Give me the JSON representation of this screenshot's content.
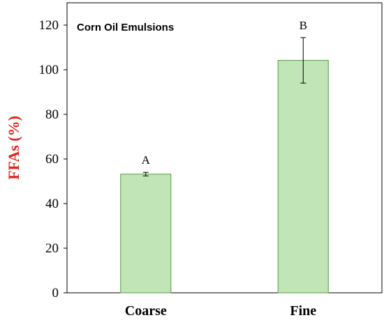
{
  "chart_data": {
    "type": "bar",
    "title": "Corn Oil Emulsions",
    "xlabel": "",
    "ylabel": "FFAs (%)",
    "ylim": [
      0,
      130
    ],
    "yticks": [
      0,
      20,
      40,
      60,
      80,
      100,
      120
    ],
    "categories": [
      "Coarse",
      "Fine"
    ],
    "values": [
      53.2,
      104.2
    ],
    "errors": [
      0.8,
      10.2
    ],
    "significance_labels": [
      "A",
      "B"
    ],
    "grid": false,
    "legend": "none",
    "colors": {
      "bar_fill": "#c2e5b8",
      "bar_stroke": "#6aa85c",
      "ylabel": "#e0231b"
    }
  }
}
